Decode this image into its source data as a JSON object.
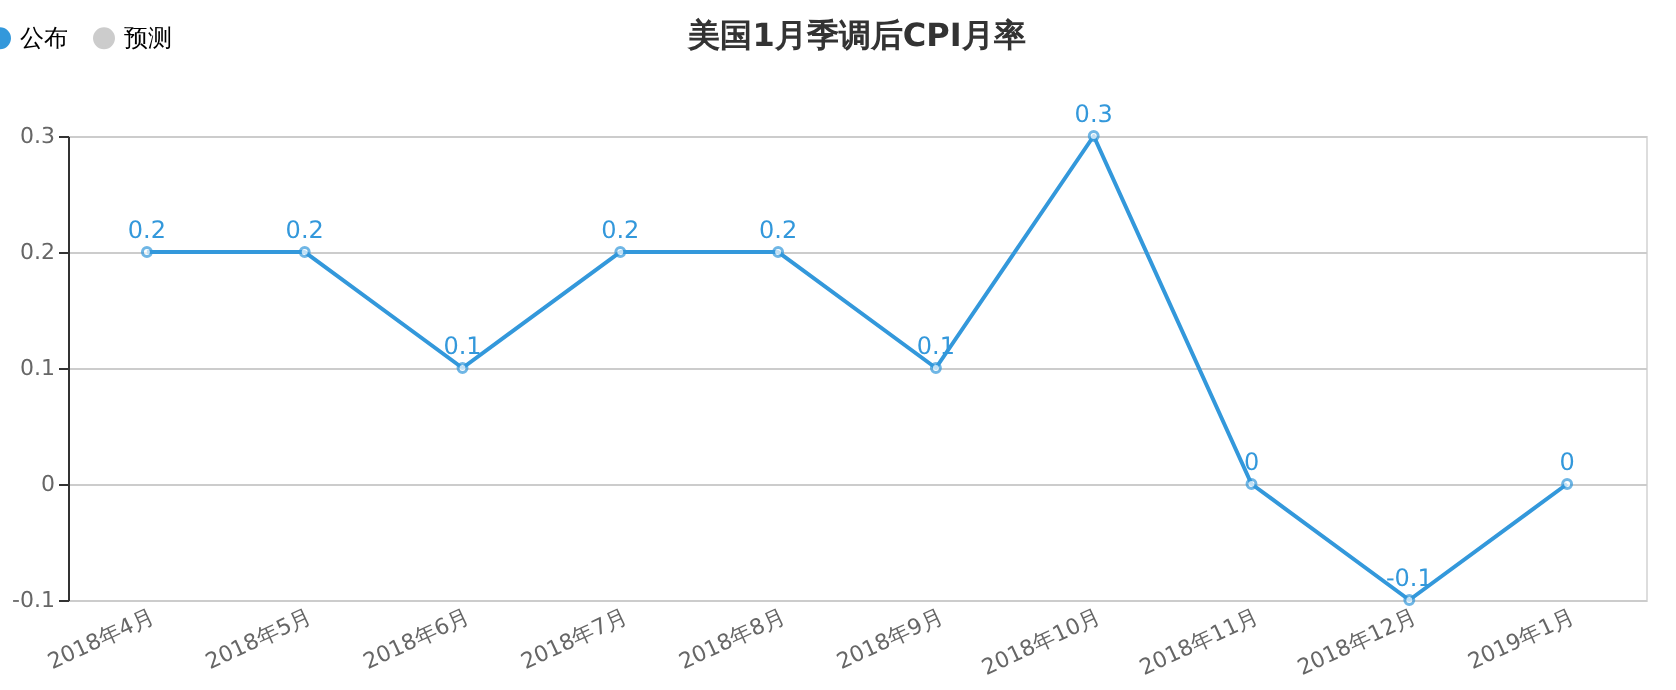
{
  "chart_data": {
    "type": "line",
    "title": "美国1月季调后CPI月率",
    "categories": [
      "2018年4月",
      "2018年5月",
      "2018年6月",
      "2018年7月",
      "2018年8月",
      "2018年9月",
      "2018年10月",
      "2018年11月",
      "2018年12月",
      "2019年1月"
    ],
    "series": [
      {
        "name": "公布",
        "color": "#3398db",
        "values": [
          0.2,
          0.2,
          0.1,
          0.2,
          0.2,
          0.1,
          0.3,
          0,
          -0.1,
          0
        ]
      },
      {
        "name": "预测",
        "color": "#cccccc",
        "values": [
          null,
          null,
          null,
          null,
          null,
          null,
          null,
          null,
          null,
          null
        ]
      }
    ],
    "ylim": [
      -0.1,
      0.3
    ],
    "yticks": [
      -0.1,
      0,
      0.1,
      0.2,
      0.3
    ],
    "grid": "y",
    "legend": "top left",
    "marker": "circle",
    "line_style": "solid",
    "data_labels": true
  }
}
